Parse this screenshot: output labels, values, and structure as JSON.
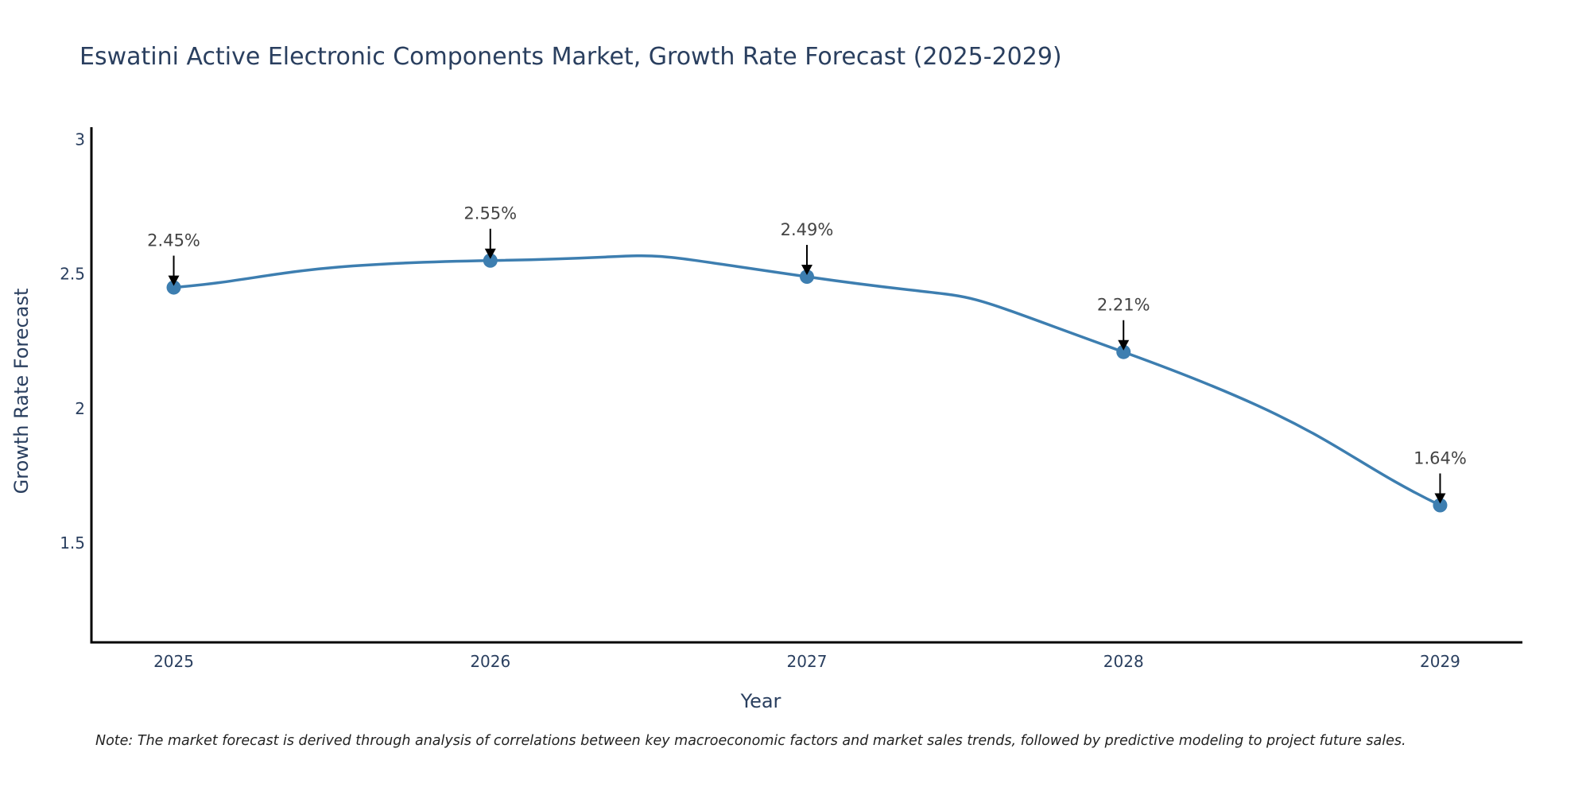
{
  "chart_data": {
    "type": "line",
    "title": "Eswatini Active Electronic Components Market, Growth Rate Forecast (2025-2029)",
    "xlabel": "Year",
    "ylabel": "Growth Rate Forecast",
    "categories": [
      "2025",
      "2026",
      "2027",
      "2028",
      "2029"
    ],
    "x": [
      2025,
      2026,
      2027,
      2028,
      2029
    ],
    "series": [
      {
        "name": "Growth Rate Forecast",
        "values": [
          2.45,
          2.55,
          2.49,
          2.21,
          1.64
        ],
        "labels": [
          "2.45%",
          "2.55%",
          "2.49%",
          "2.21%",
          "1.64%"
        ],
        "color": "#3d7eb0",
        "line_shape": "spline",
        "markers": true
      }
    ],
    "xlim": [
      2024.74,
      2029.26
    ],
    "ylim": [
      1.13,
      3.046
    ],
    "yticks": [
      1.5,
      2,
      2.5,
      3
    ],
    "ytick_labels": [
      "1.5",
      "2",
      "2.5",
      "3"
    ],
    "xticks": [
      2025,
      2026,
      2027,
      2028,
      2029
    ],
    "xtick_labels": [
      "2025",
      "2026",
      "2027",
      "2028",
      "2029"
    ],
    "grid": false,
    "legend": "none",
    "annotations": "arrow labels above each point with value in percent",
    "note": "Note: The market forecast is derived through analysis of correlations between key macroeconomic factors and market sales trends, followed by predictive modeling to project future sales."
  }
}
